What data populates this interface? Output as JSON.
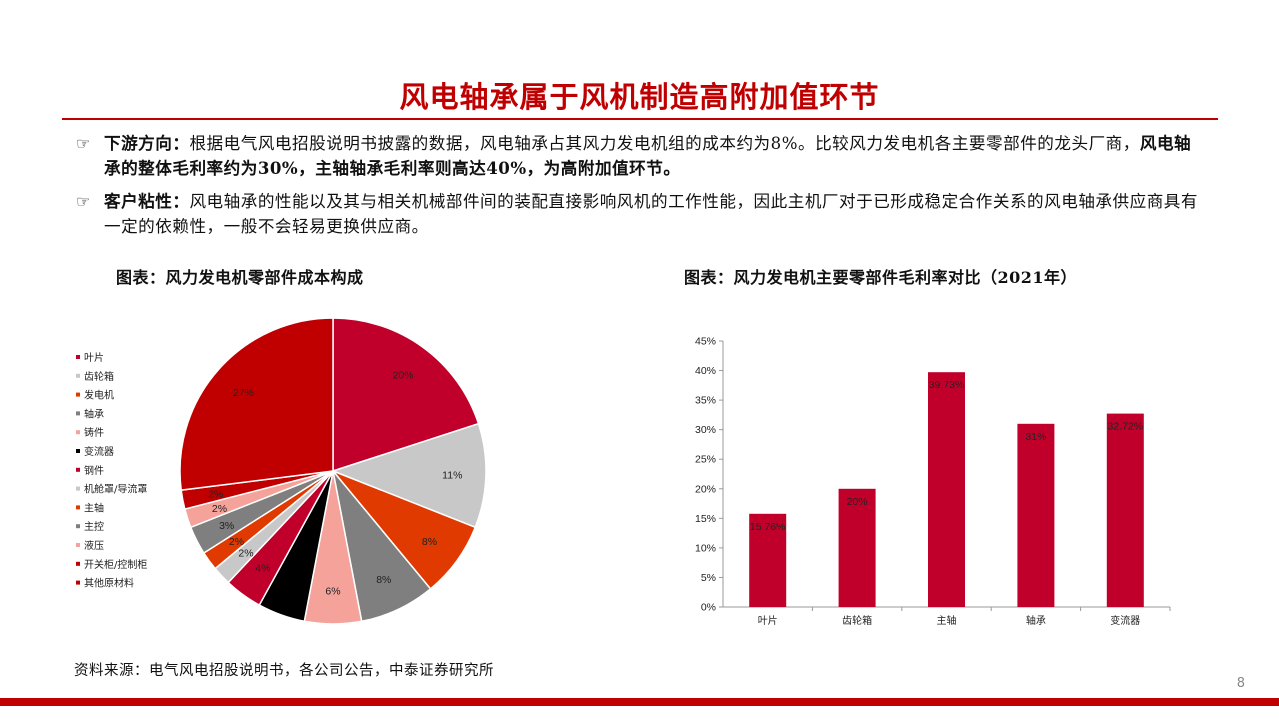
{
  "page": {
    "title": "风电轴承属于风机制造高附加值环节",
    "bullets": [
      {
        "marker": "☞",
        "lead": "下游方向：",
        "text_a": "根据电气风电招股说明书披露的数据，风电轴承占其风力发电机组的成本约为8%。比较风力发电机各主要零部件的龙头厂商，",
        "text_bold": "风电轴承的整体毛利率约为30%，主轴轴承毛利率则高达40%，为高附加值环节。",
        "text_b": ""
      },
      {
        "marker": "☞",
        "lead": "客户粘性：",
        "text_a": "风电轴承的性能以及其与相关机械部件间的装配直接影响风机的工作性能，因此主机厂对于已形成稳定合作关系的风电轴承供应商具有一定的依赖性，一般不会轻易更换供应商。",
        "text_bold": "",
        "text_b": ""
      }
    ],
    "source": "资料来源：电气风电招股说明书，各公司公告，中泰证券研究所",
    "page_number": "8"
  },
  "colors": {
    "accent": "#c00000"
  },
  "chart_data": [
    {
      "type": "pie",
      "title": "图表：风力发电机零部件成本构成",
      "legend_position": "left",
      "slices": [
        {
          "label": "叶片",
          "value": 20,
          "display": "20%",
          "color": "#c0002a"
        },
        {
          "label": "齿轮箱",
          "value": 11,
          "display": "11%",
          "color": "#c8c8c8"
        },
        {
          "label": "发电机",
          "value": 8,
          "display": "8%",
          "color": "#e03a00"
        },
        {
          "label": "轴承",
          "value": 8,
          "display": "8%",
          "color": "#7f7f7f"
        },
        {
          "label": "铸件",
          "value": 6,
          "display": "6%",
          "color": "#f4a29a"
        },
        {
          "label": "变流器",
          "value": 5,
          "display": "",
          "color": "#000000"
        },
        {
          "label": "钢件",
          "value": 4,
          "display": "4%",
          "color": "#c0002a"
        },
        {
          "label": "机舱罩/导流罩",
          "value": 2,
          "display": "2%",
          "color": "#c8c8c8"
        },
        {
          "label": "主轴",
          "value": 2,
          "display": "2%",
          "color": "#e03a00"
        },
        {
          "label": "主控",
          "value": 3,
          "display": "3%",
          "color": "#7f7f7f"
        },
        {
          "label": "液压",
          "value": 2,
          "display": "2%",
          "color": "#f4a29a"
        },
        {
          "label": "开关柜/控制柜",
          "value": 2,
          "display": "2%",
          "color": "#c00000"
        },
        {
          "label": "其他原材料",
          "value": 27,
          "display": "27%",
          "color": "#c00000"
        }
      ]
    },
    {
      "type": "bar",
      "title": "图表：风力发电机主要零部件毛利率对比（2021年）",
      "categories": [
        "叶片",
        "齿轮箱",
        "主轴",
        "轴承",
        "变流器"
      ],
      "values": [
        15.76,
        20,
        39.73,
        31,
        32.72
      ],
      "value_labels": [
        "15.76%",
        "20%",
        "39.73%",
        "31%",
        "32.72%"
      ],
      "ylim": [
        0,
        45
      ],
      "yticks": [
        "0%",
        "5%",
        "10%",
        "15%",
        "20%",
        "25%",
        "30%",
        "35%",
        "40%",
        "45%"
      ],
      "bar_color": "#c0002a",
      "grid": false
    }
  ]
}
